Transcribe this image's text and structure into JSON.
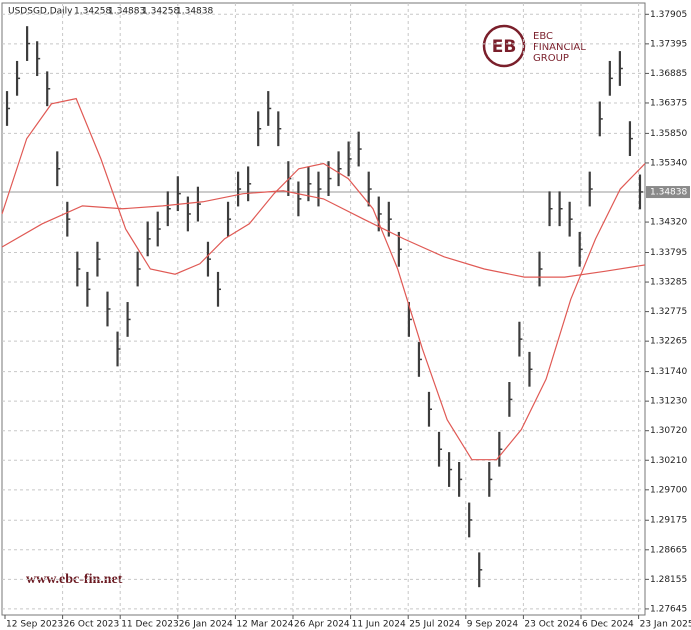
{
  "chart_data": {
    "type": "ohlc",
    "header": {
      "symbol": "USDSGD,Daily",
      "quote": [
        1.34258,
        1.34883,
        1.34258,
        1.34838
      ]
    },
    "logo": {
      "brand": "EBC",
      "line1": "FINANCIAL",
      "line2": "GROUP"
    },
    "watermark": "www.ebc-fin.net",
    "last_price": 1.34838,
    "bar_color": "#3c3c3c",
    "grid": true,
    "xticks": [
      "12 Sep 2023",
      "26 Oct 2023",
      "11 Dec 2023",
      "26 Jan 2024",
      "12 Mar 2024",
      "26 Apr 2024",
      "11 Jun 2024",
      "25 Jul 2024",
      "9 Sep 2024",
      "23 Oct 2024",
      "6 Dec 2024",
      "23 Jan 2025"
    ],
    "ylim": [
      1.2754,
      1.381
    ],
    "yticks": [
      1.37905,
      1.37395,
      1.36885,
      1.36375,
      {
        "value": 1.3585,
        "label": "1.35850"
      },
      {
        "value": 1.3534,
        "label": "1.35340"
      },
      {
        "value": 1.3432,
        "label": "1.34320"
      },
      1.33795,
      1.33285,
      1.32775,
      1.32265,
      {
        "value": 1.3174,
        "label": "1.31740"
      },
      {
        "value": 1.3123,
        "label": "1.31230"
      },
      {
        "value": 1.3072,
        "label": "1.30720"
      },
      {
        "value": 1.3021,
        "label": "1.30210"
      },
      {
        "value": 1.297,
        "label": "1.29700"
      },
      1.29175,
      1.28665,
      1.28155,
      1.27645
    ],
    "high": [
      1.3658,
      1.371,
      1.377,
      1.3744,
      1.3692,
      1.3554,
      1.3467,
      1.3381,
      1.3346,
      1.3398,
      1.3312,
      1.3243,
      1.3294,
      1.3381,
      1.3433,
      1.345,
      1.3485,
      1.3511,
      1.3476,
      1.3493,
      1.3398,
      1.3346,
      1.3467,
      1.3519,
      1.3528,
      1.3623,
      1.3658,
      1.3623,
      1.3537,
      1.3502,
      1.3528,
      1.3519,
      1.3537,
      1.3554,
      1.3571,
      1.3588,
      1.3519,
      1.3476,
      1.3467,
      1.3415,
      1.3294,
      1.3225,
      1.3139,
      1.307,
      1.3035,
      1.3018,
      1.2948,
      1.2862,
      1.3018,
      1.307,
      1.3156,
      1.326,
      1.3208,
      1.3381,
      1.3485,
      1.3485,
      1.3467,
      1.3415,
      1.3519,
      1.364,
      1.371,
      1.3727,
      1.3606,
      1.3514
    ],
    "low": [
      1.3598,
      1.365,
      1.371,
      1.3684,
      1.3632,
      1.3494,
      1.3407,
      1.3321,
      1.3286,
      1.3338,
      1.3252,
      1.3183,
      1.3234,
      1.3321,
      1.3373,
      1.339,
      1.3425,
      1.3451,
      1.3416,
      1.3433,
      1.3338,
      1.3286,
      1.3407,
      1.3459,
      1.3468,
      1.3563,
      1.3598,
      1.3563,
      1.3477,
      1.3442,
      1.3468,
      1.3459,
      1.3477,
      1.3494,
      1.3511,
      1.3528,
      1.3459,
      1.3416,
      1.3407,
      1.3355,
      1.3234,
      1.3165,
      1.3079,
      1.301,
      1.2975,
      1.2958,
      1.2888,
      1.2802,
      1.2958,
      1.301,
      1.3096,
      1.32,
      1.3148,
      1.3321,
      1.3425,
      1.3425,
      1.3407,
      1.3355,
      1.3459,
      1.358,
      1.365,
      1.3667,
      1.3546,
      1.3454
    ],
    "close": [
      1.3628,
      1.368,
      1.374,
      1.3714,
      1.3662,
      1.3524,
      1.3437,
      1.3351,
      1.3316,
      1.3368,
      1.3282,
      1.3213,
      1.3264,
      1.3351,
      1.3403,
      1.342,
      1.3455,
      1.3481,
      1.3446,
      1.3463,
      1.3368,
      1.3316,
      1.3437,
      1.3489,
      1.3498,
      1.3593,
      1.3628,
      1.3593,
      1.3507,
      1.3472,
      1.3498,
      1.3489,
      1.3507,
      1.3524,
      1.3541,
      1.3558,
      1.3489,
      1.3446,
      1.3437,
      1.3385,
      1.3264,
      1.3195,
      1.3109,
      1.304,
      1.3005,
      1.2988,
      1.2918,
      1.2832,
      1.2988,
      1.304,
      1.3126,
      1.323,
      1.3178,
      1.3351,
      1.3455,
      1.3455,
      1.3437,
      1.3385,
      1.3489,
      1.361,
      1.368,
      1.3697,
      1.3576,
      1.3484
    ],
    "series": [
      {
        "color": "#e05a55",
        "values": [
          1.3446,
          1.3576,
          1.3636,
          1.3645,
          1.3541,
          1.342,
          1.3351,
          1.3342,
          1.336,
          1.3403,
          1.3429,
          1.3481,
          1.3524,
          1.3533,
          1.3507,
          1.3455,
          1.3351,
          1.3213,
          1.3091,
          1.3022,
          1.3022,
          1.3074,
          1.3161,
          1.3299,
          1.3403,
          1.3489,
          1.3533
        ]
      },
      {
        "color": "#e05a55",
        "values": [
          1.3389,
          1.3429,
          1.346,
          1.3455,
          1.346,
          1.3467,
          1.3481,
          1.3486,
          1.3472,
          1.3437,
          1.3403,
          1.3372,
          1.3351,
          1.3337,
          1.3337,
          1.3347,
          1.3358
        ]
      }
    ]
  }
}
